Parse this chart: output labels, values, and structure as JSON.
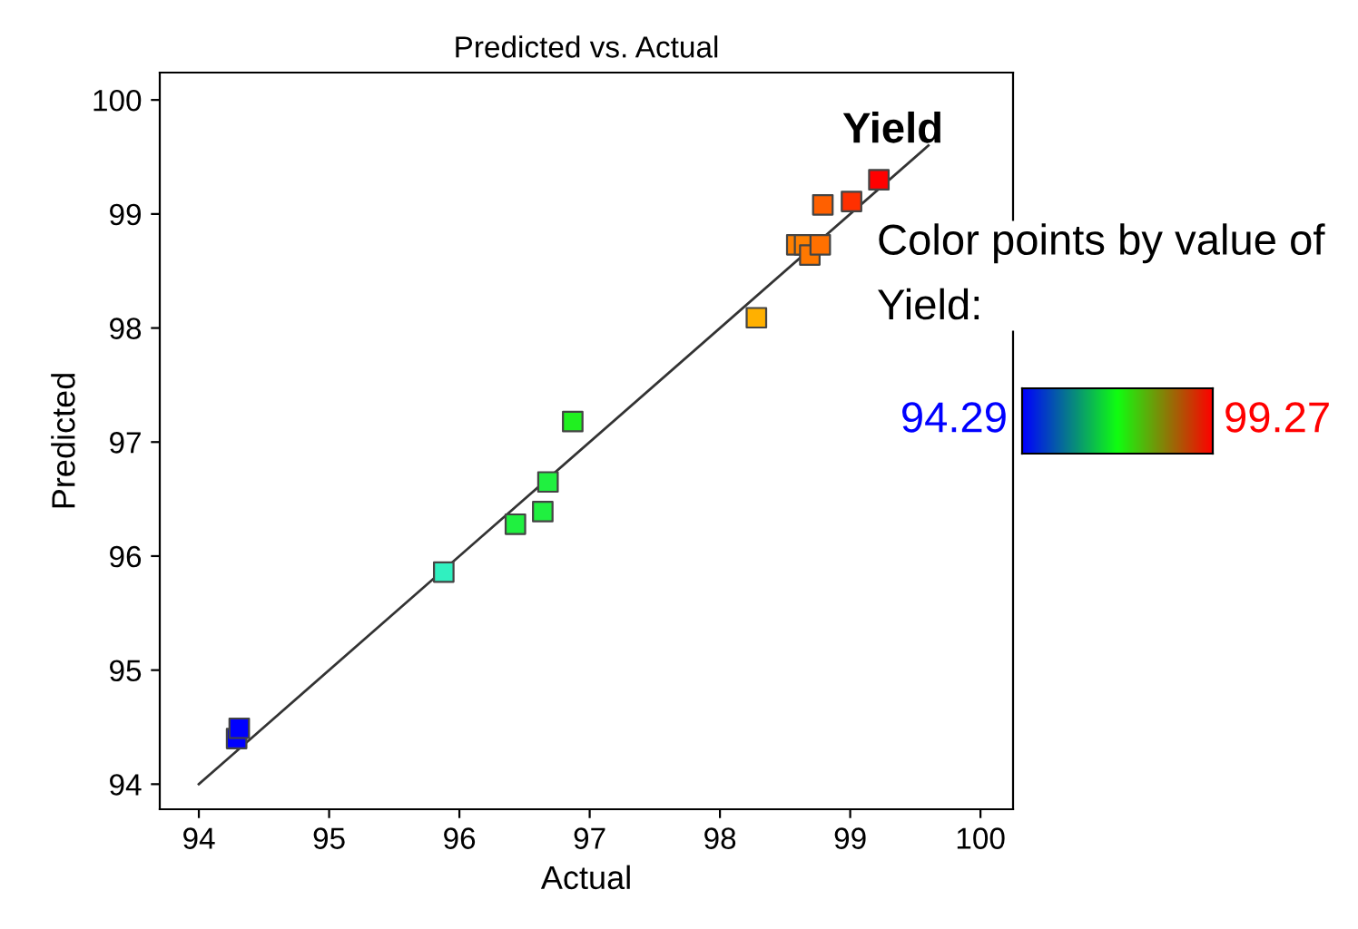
{
  "chart_data": {
    "type": "scatter",
    "title": "Predicted vs. Actual",
    "xlabel": "Actual",
    "ylabel": "Predicted",
    "clabel": "Color points by value of Yield:",
    "annotations": [
      "Yield",
      "94.29",
      "99.27"
    ],
    "xlim": [
      93.7,
      100.25
    ],
    "ylim": [
      93.78,
      100.24
    ],
    "xticks": [
      94,
      95,
      96,
      97,
      98,
      99,
      100
    ],
    "yticks": [
      94,
      95,
      96,
      97,
      98,
      99,
      100
    ],
    "series": [
      {
        "marker": "square",
        "x": [
          94.29,
          94.31,
          95.88,
          96.43,
          96.64,
          96.68,
          96.87,
          98.28,
          98.59,
          98.65,
          98.69,
          98.77,
          98.79,
          99.01,
          99.22
        ],
        "values": [
          94.4,
          94.49,
          95.86,
          96.28,
          96.39,
          96.65,
          97.18,
          98.09,
          98.73,
          98.73,
          98.64,
          98.73,
          99.08,
          99.11,
          99.3
        ],
        "colors": [
          "#0000ff",
          "#0000ff",
          "#30f0c0",
          "#20f040",
          "#20f040",
          "#20f040",
          "#20f020",
          "#ffb000",
          "#ff8000",
          "#ff8000",
          "#ff7800",
          "#ff7000",
          "#ff6000",
          "#ff3000",
          "#ff0000"
        ]
      },
      {
        "type": "line",
        "color": "#333333",
        "x": [
          94,
          99.6
        ],
        "values": [
          94,
          99.6
        ]
      }
    ]
  }
}
